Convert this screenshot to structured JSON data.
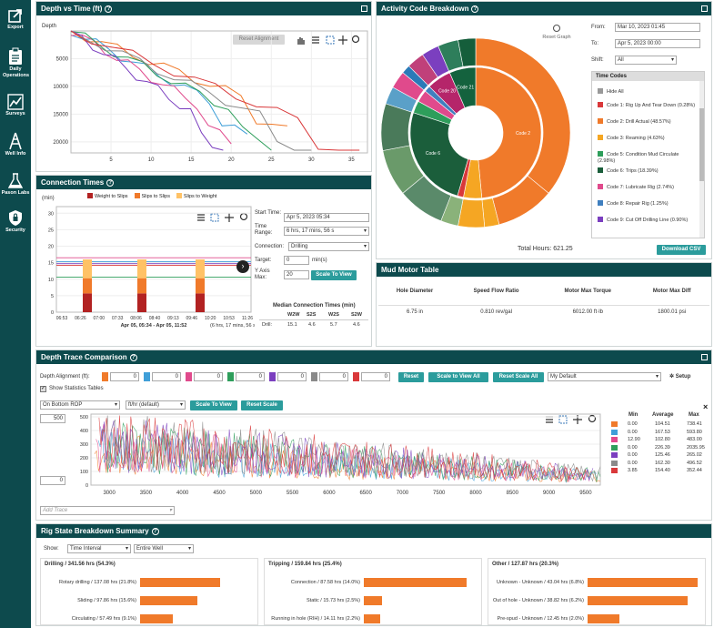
{
  "nav": [
    {
      "label": "Export",
      "icon": "export-icon"
    },
    {
      "label": "Daily Operations",
      "icon": "clipboard-icon"
    },
    {
      "label": "Surveys",
      "icon": "chart-icon"
    },
    {
      "label": "Well Info",
      "icon": "derrick-icon"
    },
    {
      "label": "Pason Labs",
      "icon": "flask-icon"
    },
    {
      "label": "Security",
      "icon": "shield-icon"
    }
  ],
  "depth_panel": {
    "title": "Depth vs Time (ft)",
    "reset_label": "Reset Alignment",
    "y_title": "Depth",
    "y_ticks": [
      "5000",
      "10000",
      "15000",
      "20000"
    ],
    "x_ticks": [
      "5",
      "10",
      "15",
      "20",
      "25",
      "30",
      "35"
    ]
  },
  "conn_panel": {
    "title": "Connection Times",
    "legend": [
      "Weight to Slips",
      "Slips to Slips",
      "Slips to Weight"
    ],
    "y_unit": "(min)",
    "y_ticks": [
      "30",
      "25",
      "20",
      "15",
      "10",
      "5",
      "0"
    ],
    "x_ticks": [
      "06:53",
      "06:26",
      "07:00",
      "07:33",
      "08:06",
      "08:40",
      "09:13",
      "09:46",
      "10:20",
      "10:53",
      "11:26"
    ],
    "x_caption": "Apr 05, 05:34 - Apr 05, 11:52",
    "x_caption_dur": "(6 hrs, 17 mins, 56 s)",
    "start_label": "Start Time:",
    "start_value": "Apr 5, 2023 05:34",
    "range_label": "Time Range:",
    "range_value": "6 hrs, 17 mins, 56 s",
    "connection_label": "Connection:",
    "connection_value": "Drilling",
    "target_label": "Target:",
    "target_value": "0",
    "target_unit": "min(s)",
    "yaxis_label": "Y Axis Max:",
    "yaxis_value": "20",
    "scale_btn": "Scale To View",
    "median_title": "Median Connection Times (min)",
    "median_cols": [
      "W2W",
      "S2S",
      "W2S",
      "S2W"
    ],
    "median_row_label": "Drill:",
    "median_values": [
      "15.1",
      "4.6",
      "5.7",
      "4.6"
    ]
  },
  "activity_panel": {
    "title": "Activity Code Breakdown",
    "reset_graph": "Reset Graph",
    "from_label": "From:",
    "from_value": "Mar 10, 2023 01:45",
    "to_label": "To:",
    "to_value": "Apr 5, 2023 00:00",
    "shift_label": "Shift:",
    "shift_value": "All",
    "codes_header": "Time Codes",
    "hide_all": "Hide All",
    "codes": [
      {
        "label": "Code 1: Rig Up And Tear Down (0.28%)",
        "color": "#d9383a"
      },
      {
        "label": "Code 2: Drill Actual (48.57%)",
        "color": "#f07a2a"
      },
      {
        "label": "Code 3: Reaming (4.63%)",
        "color": "#f5a623"
      },
      {
        "label": "Code 5: Condition Mud Circulate (2.98%)",
        "color": "#2e9e5b"
      },
      {
        "label": "Code 6: Trips (18.39%)",
        "color": "#1b5e3b"
      },
      {
        "label": "Code 7: Lubricate Rig (2.74%)",
        "color": "#e04a8c"
      },
      {
        "label": "Code 8: Repair Rig (1.25%)",
        "color": "#3f7fbf"
      },
      {
        "label": "Code 9: Cut Off Drilling Line (0.90%)",
        "color": "#7b3fbf"
      }
    ],
    "donut_labels": [
      "Code 2",
      "Code 6",
      "Code 21",
      "Code 20"
    ],
    "total": "Total Hours: 621.25",
    "download": "Download CSV"
  },
  "mud_panel": {
    "title": "Mud Motor Table",
    "headers": [
      "Hole Diameter",
      "Speed Flow Ratio",
      "Motor Max Torque",
      "Motor Max Diff"
    ],
    "row": [
      "6.75 in",
      "0.810 rev/gal",
      "6012.00 ft·lb",
      "1800.01 psi"
    ]
  },
  "trace_panel": {
    "title": "Depth Trace Comparison",
    "align_label": "Depth Alignment (ft):",
    "align_inputs": [
      {
        "color": "#f07a2a",
        "value": "0"
      },
      {
        "color": "#3f9fd8",
        "value": "0"
      },
      {
        "color": "#e04a8c",
        "value": "0"
      },
      {
        "color": "#2e9e5b",
        "value": "0"
      },
      {
        "color": "#7b3fbf",
        "value": "0"
      },
      {
        "color": "#8a8a8a",
        "value": "0"
      },
      {
        "color": "#d9383a",
        "value": "0"
      }
    ],
    "reset_btn": "Reset",
    "scale_all_btn": "Scale to View All",
    "reset_scale_all_btn": "Reset Scale All",
    "default_select": "My Default",
    "setup_label": "Setup",
    "show_stats": "Show Statistics Tables",
    "metric_select": "On Bottom ROP",
    "unit_select": "ft/hr (default)",
    "scale_view_btn": "Scale To View",
    "reset_scale_btn": "Reset Scale",
    "ymax_value": "500",
    "ymin_value": "0",
    "y_ticks": [
      "500",
      "400",
      "300",
      "200",
      "100",
      "0"
    ],
    "x_ticks": [
      "3000",
      "3500",
      "4000",
      "4500",
      "5000",
      "5500",
      "6000",
      "6500",
      "7000",
      "7500",
      "8000",
      "8500",
      "9000",
      "9500"
    ],
    "add_trace": "Add Trace",
    "stats_headers": [
      "Min",
      "Average",
      "Max"
    ],
    "stats": [
      {
        "color": "#f07a2a",
        "min": "0.00",
        "avg": "104.51",
        "max": "738.41"
      },
      {
        "color": "#3f9fd8",
        "min": "0.00",
        "avg": "167.53",
        "max": "593.80"
      },
      {
        "color": "#e04a8c",
        "min": "12.90",
        "avg": "102.80",
        "max": "483.00"
      },
      {
        "color": "#2e9e5b",
        "min": "0.00",
        "avg": "226.39",
        "max": "2035.95"
      },
      {
        "color": "#7b3fbf",
        "min": "0.00",
        "avg": "125.46",
        "max": "265.02"
      },
      {
        "color": "#8a8a8a",
        "min": "0.00",
        "avg": "162.30",
        "max": "496.52"
      },
      {
        "color": "#d9383a",
        "min": "3.85",
        "avg": "154.40",
        "max": "352.44"
      }
    ]
  },
  "rig_panel": {
    "title": "Rig State Breakdown Summary",
    "show_label": "Show:",
    "show_value": "Time Interval",
    "range_value": "Entire Well",
    "groups": [
      {
        "title": "Drilling / 341.56 hrs (54.3%)",
        "items": [
          {
            "label": "Rotary drilling / 137.08 hrs (21.8%)",
            "frac": 0.7
          },
          {
            "label": "Sliding / 97.86 hrs (15.6%)",
            "frac": 0.5
          },
          {
            "label": "Circulating / 57.49 hrs (9.1%)",
            "frac": 0.29
          }
        ]
      },
      {
        "title": "Tripping / 159.84 hrs (25.4%)",
        "items": [
          {
            "label": "Connection / 87.58 hrs (14.0%)",
            "frac": 0.9
          },
          {
            "label": "Static / 15.73 hrs (2.5%)",
            "frac": 0.16
          },
          {
            "label": "Running in hole (RIH) / 14.11 hrs (2.2%)",
            "frac": 0.14
          }
        ]
      },
      {
        "title": "Other / 127.87 hrs (20.3%)",
        "items": [
          {
            "label": "Unknown - Unknown / 43.04 hrs (6.8%)",
            "frac": 0.97
          },
          {
            "label": "Out of hole - Unknown / 38.82 hrs (6.2%)",
            "frac": 0.88
          },
          {
            "label": "Pre-spud - Unknown / 12.45 hrs (2.0%)",
            "frac": 0.28
          }
        ]
      }
    ]
  }
}
